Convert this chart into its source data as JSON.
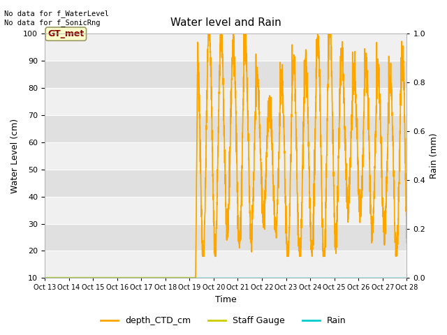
{
  "title": "Water level and Rain",
  "xlabel": "Time",
  "ylabel_left": "Water Level (cm)",
  "ylabel_right": "Rain (mm)",
  "annotation_top": "No data for f_WaterLevel\nNo data for f_SonicRng",
  "legend_label": "GT_met",
  "ylim_left": [
    10,
    100
  ],
  "ylim_right": [
    0.0,
    1.0
  ],
  "yticks_left": [
    10,
    20,
    30,
    40,
    50,
    60,
    70,
    80,
    90,
    100
  ],
  "yticks_right": [
    0.0,
    0.2,
    0.4,
    0.6,
    0.8,
    1.0
  ],
  "xtick_labels": [
    "Oct 13",
    "Oct 14",
    "Oct 15",
    "Oct 16",
    "Oct 17",
    "Oct 18",
    "Oct 19",
    "Oct 20",
    "Oct 21",
    "Oct 22",
    "Oct 23",
    "Oct 24",
    "Oct 25",
    "Oct 26",
    "Oct 27",
    "Oct 28"
  ],
  "background_color": "#e8e8e8",
  "band_color_light": "#f0f0f0",
  "band_color_dark": "#e0e0e0",
  "line_color_ctd": "#FFA500",
  "line_color_rain": "#00CCCC",
  "legend_entries": [
    "depth_CTD_cm",
    "Staff Gauge",
    "Rain"
  ],
  "legend_colors": [
    "#FFA500",
    "#CCCC00",
    "#00CCCC"
  ],
  "figsize": [
    6.4,
    4.8
  ],
  "dpi": 100
}
